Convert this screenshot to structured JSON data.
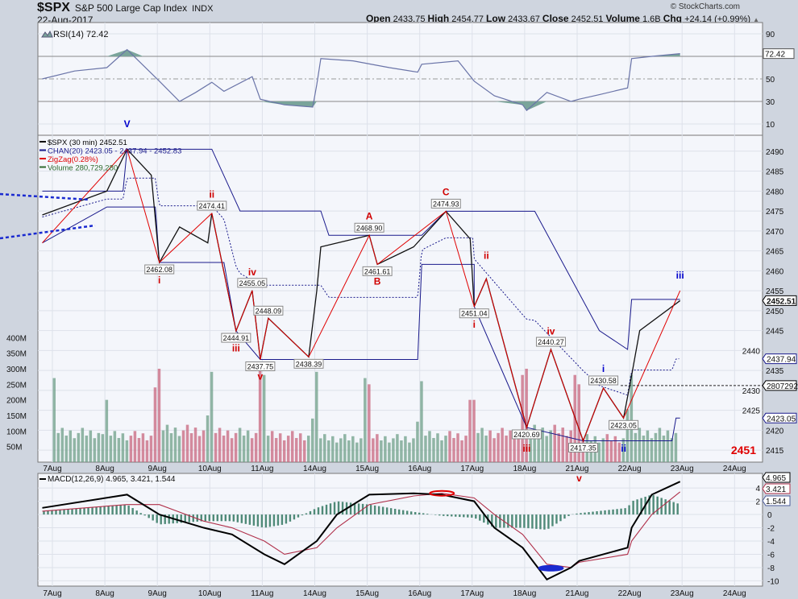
{
  "header": {
    "symbol": "$SPX",
    "name": "S&P 500 Large Cap Index",
    "exchange": "INDX",
    "date": "22-Aug-2017",
    "copyright": "© StockCharts.com",
    "ohlc": [
      {
        "k": "Open",
        "v": "2433.75"
      },
      {
        "k": "High",
        "v": "2454.77"
      },
      {
        "k": "Low",
        "v": "2433.67"
      },
      {
        "k": "Close",
        "v": "2452.51"
      },
      {
        "k": "Volume",
        "v": "1.6B"
      },
      {
        "k": "Chg",
        "v": "+24.14 (+0.99%)"
      }
    ],
    "chg_icon": "triangle-up-icon"
  },
  "colors": {
    "up": "#6f9f88",
    "down": "#c8667e",
    "zigzag": "#e00000",
    "chan": "#1a1a8c",
    "rsi": "#6a74a8",
    "rsi_fill": "#7aa49a",
    "macd": "#000000",
    "signal": "#b0304a",
    "hist": "#4f8a78",
    "wave_red": "#d00000",
    "wave_blue": "#0000cc",
    "panel": "#f4f6fb"
  },
  "chart_data": [
    {
      "type": "line",
      "panel": "RSI",
      "legend": "RSI(14) 72.42",
      "ylim": [
        0,
        100
      ],
      "yticks": [
        90,
        70,
        50,
        30,
        10
      ],
      "ytick_labels": [
        "90",
        "",
        "50",
        "30",
        "10"
      ],
      "last_tag": "72.42",
      "points": [
        [
          "08-04 14:30",
          50
        ],
        [
          "08-07 12:00",
          57
        ],
        [
          "08-08 09:30",
          60
        ],
        [
          "08-08 12:00",
          76
        ],
        [
          "08-08 14:00",
          62
        ],
        [
          "08-09 09:30",
          48
        ],
        [
          "08-09 12:00",
          30
        ],
        [
          "08-09 14:00",
          38
        ],
        [
          "08-10 09:30",
          47
        ],
        [
          "08-10 11:00",
          39
        ],
        [
          "08-10 14:30",
          52
        ],
        [
          "08-10 15:30",
          32
        ],
        [
          "08-11 12:00",
          27
        ],
        [
          "08-11 15:30",
          25
        ],
        [
          "08-14 09:30",
          45
        ],
        [
          "08-14 10:00",
          68
        ],
        [
          "08-14 14:00",
          66
        ],
        [
          "08-15 12:00",
          60
        ],
        [
          "08-15 15:30",
          56
        ],
        [
          "08-16 09:30",
          63
        ],
        [
          "08-16 14:00",
          66
        ],
        [
          "08-17 09:30",
          48
        ],
        [
          "08-17 12:00",
          35
        ],
        [
          "08-17 15:30",
          27
        ],
        [
          "08-18 09:30",
          22
        ],
        [
          "08-18 12:00",
          38
        ],
        [
          "08-18 15:00",
          30
        ],
        [
          "08-21 09:30",
          32
        ],
        [
          "08-21 12:00",
          36
        ],
        [
          "08-21 15:30",
          42
        ],
        [
          "08-22 09:30",
          68
        ],
        [
          "08-22 12:00",
          70
        ],
        [
          "08-22 15:30",
          72.42
        ]
      ]
    },
    {
      "type": "line",
      "panel": "Price",
      "ylim": [
        2412,
        2494
      ],
      "yticks": [
        2415,
        2420,
        2425,
        2430,
        2435,
        2440,
        2445,
        2450,
        2455,
        2460,
        2465,
        2470,
        2475,
        2480,
        2485,
        2490
      ],
      "legend": [
        {
          "text": "$SPX (30 min) 2452.51",
          "color": "#000000",
          "icon": "candles-icon"
        },
        {
          "text": "CHAN(20) 2423.05 - 2437.94 - 2452.83",
          "color": "#1a1a8c",
          "icon": "line-icon"
        },
        {
          "text": "ZigZag(0.28%)",
          "color": "#e00000",
          "icon": "line-icon"
        },
        {
          "text": "Volume 280,729,280",
          "color": "#2e6b2e",
          "icon": "volume-icon"
        }
      ],
      "right_tags": [
        {
          "v": "2452.51",
          "color": "#000000",
          "bold": true,
          "at": 2452.51
        },
        {
          "v": "2437.94",
          "color": "#1a1a8c",
          "at": 2437.94
        },
        {
          "v": "2807292",
          "color": "#000000",
          "at": 2431.2
        },
        {
          "v": "2423.05",
          "color": "#1a1a8c",
          "at": 2423.05
        }
      ],
      "close": [
        [
          "08-04 14:30",
          2474
        ],
        [
          "08-07 12:00",
          2477
        ],
        [
          "08-08 09:30",
          2480
        ],
        [
          "08-08 12:00",
          2490.5
        ],
        [
          "08-08 15:00",
          2484
        ],
        [
          "08-09 09:30",
          2462.08
        ],
        [
          "08-09 12:00",
          2471
        ],
        [
          "08-09 15:30",
          2467
        ],
        [
          "08-10 09:30",
          2474.41
        ],
        [
          "08-10 12:30",
          2444.91
        ],
        [
          "08-10 14:30",
          2455.05
        ],
        [
          "08-10 15:30",
          2437.75
        ],
        [
          "08-11 10:00",
          2448.09
        ],
        [
          "08-11 15:00",
          2438.39
        ],
        [
          "08-14 09:30",
          2455
        ],
        [
          "08-14 10:00",
          2466
        ],
        [
          "08-15 09:30",
          2468.9
        ],
        [
          "08-15 10:30",
          2461.61
        ],
        [
          "08-15 15:00",
          2466
        ],
        [
          "08-16 12:30",
          2474.93
        ],
        [
          "08-16 15:30",
          2468
        ],
        [
          "08-17 09:30",
          2451.04
        ],
        [
          "08-17 11:00",
          2458
        ],
        [
          "08-18 09:30",
          2420.69
        ],
        [
          "08-18 12:30",
          2440.27
        ],
        [
          "08-21 10:00",
          2417.35
        ],
        [
          "08-21 12:30",
          2430.58
        ],
        [
          "08-21 15:00",
          2423.05
        ],
        [
          "08-22 09:30",
          2433.75
        ],
        [
          "08-22 10:30",
          2445
        ],
        [
          "08-22 15:30",
          2452.51
        ]
      ],
      "zigzag": [
        [
          "08-04 14:30",
          2467
        ],
        [
          "08-08 12:00",
          2490.5
        ],
        [
          "08-09 09:30",
          2462.08
        ],
        [
          "08-10 09:30",
          2474.41
        ],
        [
          "08-10 12:30",
          2444.91
        ],
        [
          "08-10 14:30",
          2455.05
        ],
        [
          "08-10 15:30",
          2437.75
        ],
        [
          "08-11 10:00",
          2448.09
        ],
        [
          "08-11 15:00",
          2438.39
        ],
        [
          "08-15 09:30",
          2468.9
        ],
        [
          "08-15 10:30",
          2461.61
        ],
        [
          "08-16 12:30",
          2474.93
        ],
        [
          "08-17 09:30",
          2451.04
        ],
        [
          "08-17 11:00",
          2458
        ],
        [
          "08-18 09:30",
          2420.69
        ],
        [
          "08-18 12:30",
          2440.27
        ],
        [
          "08-21 10:00",
          2417.35
        ],
        [
          "08-21 12:30",
          2430.58
        ],
        [
          "08-21 15:00",
          2423.05
        ],
        [
          "08-22 15:30",
          2455
        ]
      ],
      "chan_upper": [
        [
          "08-04 14:30",
          2480
        ],
        [
          "08-08 11:30",
          2480
        ],
        [
          "08-08 12:00",
          2490.5
        ],
        [
          "08-10 09:30",
          2490.5
        ],
        [
          "08-10 13:00",
          2475
        ],
        [
          "08-14 10:00",
          2475
        ],
        [
          "08-14 11:00",
          2468.9
        ],
        [
          "08-16 09:30",
          2468.9
        ],
        [
          "08-16 12:30",
          2474.93
        ],
        [
          "08-18 10:30",
          2474.93
        ],
        [
          "08-21 12:00",
          2445
        ],
        [
          "08-21 15:30",
          2440.27
        ],
        [
          "08-22 09:30",
          2452.83
        ],
        [
          "08-22 15:30",
          2452.83
        ]
      ],
      "chan_lower": [
        [
          "08-04 14:30",
          2467
        ],
        [
          "08-08 09:30",
          2476
        ],
        [
          "08-09 09:00",
          2476
        ],
        [
          "08-09 09:30",
          2462.08
        ],
        [
          "08-10 11:00",
          2462.08
        ],
        [
          "08-10 12:30",
          2444.91
        ],
        [
          "08-10 15:30",
          2437.75
        ],
        [
          "08-15 15:30",
          2437.75
        ],
        [
          "08-16 09:30",
          2461.61
        ],
        [
          "08-17 09:30",
          2461.61
        ],
        [
          "08-17 09:30",
          2451.04
        ],
        [
          "08-18 09:30",
          2420.69
        ],
        [
          "08-21 10:00",
          2417.35
        ],
        [
          "08-22 14:30",
          2417.35
        ],
        [
          "08-22 15:00",
          2423.05
        ],
        [
          "08-22 15:30",
          2423.05
        ]
      ],
      "pivot_labels": [
        [
          "08-09 09:30",
          2462.08,
          "2462.08",
          "below"
        ],
        [
          "08-10 09:30",
          2474.41,
          "2474.41",
          "above"
        ],
        [
          "08-10 12:30",
          2444.91,
          "2444.91",
          "below"
        ],
        [
          "08-10 14:30",
          2455.05,
          "2455.05",
          "above"
        ],
        [
          "08-10 15:30",
          2437.75,
          "2437.75",
          "below"
        ],
        [
          "08-11 10:00",
          2448.09,
          "2448.09",
          "above"
        ],
        [
          "08-11 15:00",
          2438.39,
          "2438.39",
          "below"
        ],
        [
          "08-15 09:30",
          2468.9,
          "2468.90",
          "above"
        ],
        [
          "08-15 10:30",
          2461.61,
          "2461.61",
          "below"
        ],
        [
          "08-16 12:30",
          2474.93,
          "2474.93",
          "above"
        ],
        [
          "08-17 09:30",
          2451.04,
          "2451.04",
          "below"
        ],
        [
          "08-18 09:30",
          2420.69,
          "2420.69",
          "below"
        ],
        [
          "08-18 12:30",
          2440.27,
          "2440.27",
          "above"
        ],
        [
          "08-21 10:00",
          2417.35,
          "2417.35",
          "below"
        ],
        [
          "08-21 12:30",
          2430.58,
          "2430.58",
          "above"
        ],
        [
          "08-21 15:00",
          2423.05,
          "2423.05",
          "below"
        ]
      ],
      "wave_labels": [
        [
          "08-08 12:00",
          2496,
          "V",
          "blue"
        ],
        [
          "08-09 09:30",
          2458.5,
          "i",
          "red"
        ],
        [
          "08-10 09:30",
          2477.5,
          "ii",
          "red"
        ],
        [
          "08-10 12:30",
          2441,
          "iii",
          "red"
        ],
        [
          "08-10 14:30",
          2458,
          "iv",
          "red"
        ],
        [
          "08-10 15:30",
          2433.5,
          "v",
          "red"
        ],
        [
          "08-15 09:30",
          2472.5,
          "A",
          "red"
        ],
        [
          "08-15 10:30",
          2456.5,
          "B",
          "red"
        ],
        [
          "08-16 12:30",
          2478.5,
          "C",
          "red"
        ],
        [
          "08-17 09:30",
          2446.5,
          "i",
          "red"
        ],
        [
          "08-17 11:00",
          2463,
          "ii",
          "red"
        ],
        [
          "08-18 09:30",
          2414.6,
          "iii",
          "red"
        ],
        [
          "08-18 12:30",
          2444,
          "iv",
          "red"
        ],
        [
          "08-21 12:30",
          2433.8,
          "i",
          "blue"
        ],
        [
          "08-21 15:00",
          2414.6,
          "ii",
          "blue"
        ],
        [
          "08-22 15:30",
          2458,
          "iii",
          "blue"
        ]
      ],
      "target_label": "2451",
      "volume_ylim": [
        0,
        420
      ],
      "volume_unit": "M",
      "volume_ticks": [
        400,
        350,
        300,
        250,
        200,
        150,
        100,
        50
      ],
      "volume_daily": [
        [
          "08-07",
          270,
          110,
          90
        ],
        [
          "08-08",
          200,
          100,
          240
        ],
        [
          "08-09",
          300,
          120,
          150
        ],
        [
          "08-10",
          290,
          110,
          300
        ],
        [
          "08-11",
          280,
          100,
          140
        ],
        [
          "08-14",
          290,
          90,
          270
        ],
        [
          "08-15",
          250,
          90,
          130
        ],
        [
          "08-16",
          260,
          100,
          200
        ],
        [
          "08-17",
          200,
          110,
          280
        ],
        [
          "08-18",
          300,
          120,
          280
        ],
        [
          "08-21",
          250,
          90,
          170
        ],
        [
          "08-22",
          280,
          110,
          0
        ]
      ]
    },
    {
      "type": "line",
      "panel": "MACD",
      "legend": "MACD(12,26,9) 4.965, 3.421, 1.544",
      "ylim": [
        -10.8,
        6.2
      ],
      "yticks": [
        4,
        2,
        0,
        -2,
        -4,
        -6,
        -8,
        -10
      ],
      "tags": [
        {
          "v": "4.965",
          "color": "#000000",
          "at": 4.965
        },
        {
          "v": "3.421",
          "color": "#b0304a",
          "at": 3.421
        },
        {
          "v": "1.544",
          "color": "#4a5a9a",
          "at": 1.544
        }
      ],
      "macd": [
        [
          "08-04 14:30",
          1
        ],
        [
          "08-08 12:00",
          3
        ],
        [
          "08-09 09:30",
          0
        ],
        [
          "08-09 15:00",
          -2
        ],
        [
          "08-10 12:00",
          -3
        ],
        [
          "08-11 09:30",
          -6
        ],
        [
          "08-11 12:00",
          -7.5
        ],
        [
          "08-14 09:30",
          -4
        ],
        [
          "08-14 12:00",
          0
        ],
        [
          "08-15 09:30",
          3
        ],
        [
          "08-15 15:00",
          3.2
        ],
        [
          "08-16 12:00",
          3
        ],
        [
          "08-17 09:30",
          2
        ],
        [
          "08-17 12:00",
          -2
        ],
        [
          "08-17 15:30",
          -5
        ],
        [
          "08-18 12:00",
          -9.8
        ],
        [
          "08-18 15:00",
          -8
        ],
        [
          "08-21 09:30",
          -7
        ],
        [
          "08-21 15:30",
          -5
        ],
        [
          "08-22 09:30",
          -2
        ],
        [
          "08-22 12:00",
          3
        ],
        [
          "08-22 15:30",
          4.965
        ]
      ],
      "signal": [
        [
          "08-04 14:30",
          0.5
        ],
        [
          "08-08 12:00",
          1.5
        ],
        [
          "08-09 09:30",
          1.5
        ],
        [
          "08-09 15:00",
          -1
        ],
        [
          "08-10 12:00",
          -2
        ],
        [
          "08-11 09:30",
          -4
        ],
        [
          "08-11 12:00",
          -6
        ],
        [
          "08-14 09:30",
          -5
        ],
        [
          "08-14 12:00",
          -2
        ],
        [
          "08-15 09:30",
          1.5
        ],
        [
          "08-15 15:00",
          2.8
        ],
        [
          "08-16 12:00",
          3.2
        ],
        [
          "08-17 09:30",
          2.5
        ],
        [
          "08-17 12:00",
          0
        ],
        [
          "08-17 15:30",
          -3
        ],
        [
          "08-18 12:00",
          -7.5
        ],
        [
          "08-18 15:00",
          -8
        ],
        [
          "08-21 09:30",
          -7.2
        ],
        [
          "08-21 15:30",
          -6
        ],
        [
          "08-22 09:30",
          -4
        ],
        [
          "08-22 12:00",
          0
        ],
        [
          "08-22 15:30",
          3.421
        ]
      ],
      "wave_labels": [
        [
          "08-21 09:30",
          5,
          "v",
          "red"
        ]
      ],
      "highlights": [
        [
          "08-16 12:00",
          3.2,
          "red"
        ],
        [
          "08-18 12:30",
          -8.1,
          "blue"
        ]
      ]
    }
  ],
  "x_axis": {
    "labels": [
      "7Aug",
      "8Aug",
      "9Aug",
      "10Aug",
      "11Aug",
      "14Aug",
      "15Aug",
      "16Aug",
      "17Aug",
      "18Aug",
      "21Aug",
      "22Aug",
      "23Aug",
      "24Aug"
    ]
  }
}
